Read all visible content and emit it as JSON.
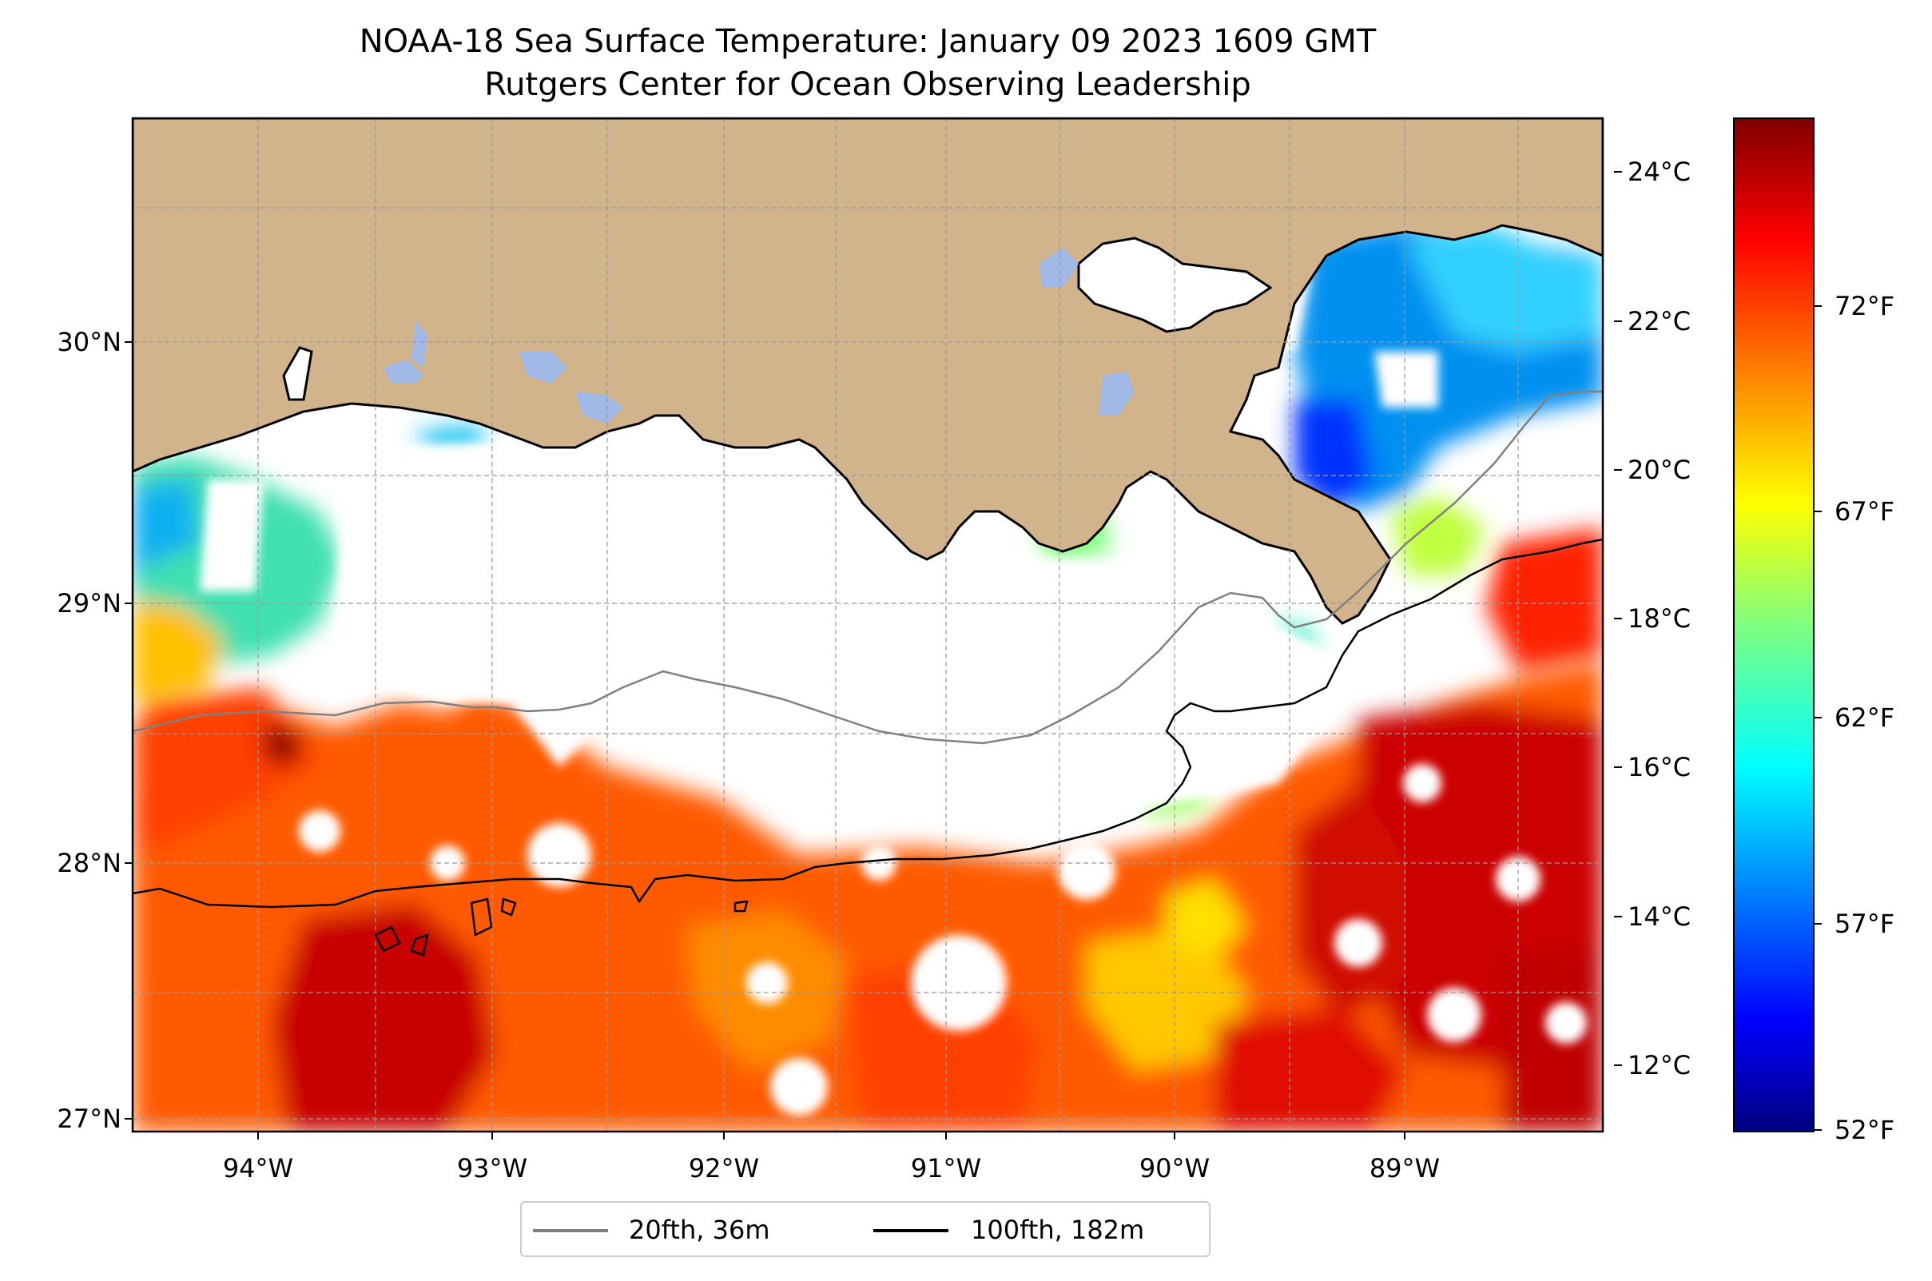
{
  "title": {
    "line1": "NOAA-18 Sea Surface Temperature: January 09 2023 1609 GMT",
    "line2": "Rutgers Center for Ocean Observing Leadership"
  },
  "map": {
    "land_color": "#d2b48c",
    "lake_color": "#9fb8e6",
    "gridlines": true,
    "lat_ticks": [
      "27°N",
      "28°N",
      "29°N",
      "30°N"
    ],
    "lon_ticks": [
      "94°W",
      "93°W",
      "92°W",
      "91°W",
      "90°W",
      "89°W"
    ],
    "extent": {
      "lon": [
        -94.55,
        -88.2
      ],
      "lat": [
        26.93,
        30.85
      ]
    }
  },
  "colorbar": {
    "colormap": "jet",
    "celsius_ticks": [
      "24°C",
      "22°C",
      "20°C",
      "18°C",
      "16°C",
      "14°C",
      "12°C"
    ],
    "fahrenheit_ticks": [
      "72°F",
      "67°F",
      "62°F",
      "57°F",
      "52°F"
    ]
  },
  "legend": {
    "placement": "bottom-center",
    "items": [
      {
        "label": "20fth, 36m",
        "color": "#808080"
      },
      {
        "label": "100fth, 182m",
        "color": "#000000"
      }
    ]
  }
}
